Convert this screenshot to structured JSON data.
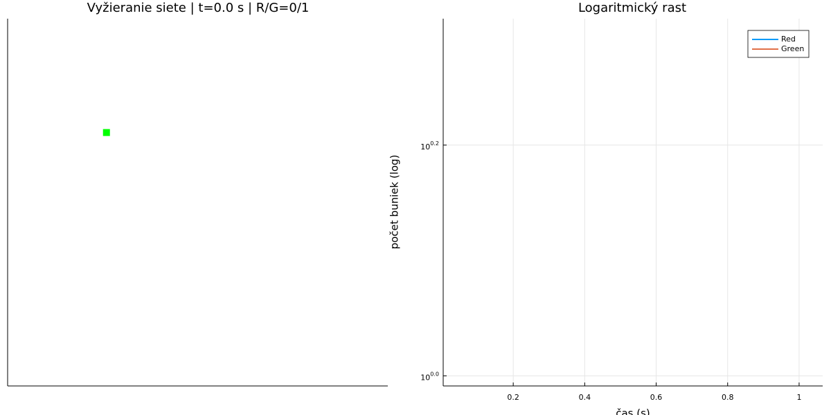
{
  "chart_data": [
    {
      "type": "scatter",
      "title": "Vyžieranie siete | t=0.0 s | R/G=0/1",
      "x": [
        0.26
      ],
      "y": [
        0.69
      ],
      "color": "#00ff00",
      "marker": "square",
      "xlim": [
        0,
        1
      ],
      "ylim": [
        0,
        1
      ]
    },
    {
      "type": "line",
      "title": "Logaritmický rast",
      "x_label": "čas (s)",
      "y_label": "počet buniek (log)",
      "x": [],
      "series": [
        {
          "name": "Red",
          "color": "#009af9",
          "values": []
        },
        {
          "name": "Green",
          "color": "#e26f46",
          "values": []
        }
      ],
      "xlim": [
        0.004,
        1.066
      ],
      "xticks": [
        0.2,
        0.4,
        0.6,
        0.8,
        1.0
      ],
      "ylim": [
        0.98,
        2.04
      ],
      "log_y": true,
      "yticks": [
        {
          "value": 1,
          "label": "10",
          "exponent": "0.0"
        },
        {
          "value": 1.585,
          "label": "10",
          "exponent": "0.2"
        }
      ],
      "grid": true,
      "legend": "top-right"
    }
  ]
}
